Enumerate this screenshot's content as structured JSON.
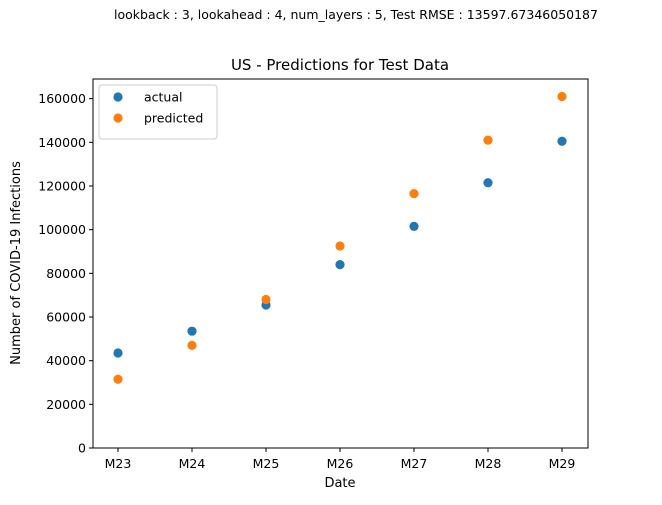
{
  "suptitle": "lookback : 3, lookahead : 4, num_layers : 5, Test RMSE : 13597.67346050187",
  "chart_data": {
    "type": "scatter",
    "title": "US - Predictions for Test Data",
    "xlabel": "Date",
    "ylabel": "Number of COVID-19 Infections",
    "categories": [
      "M23",
      "M24",
      "M25",
      "M26",
      "M27",
      "M28",
      "M29"
    ],
    "y_ticks": [
      0,
      20000,
      40000,
      60000,
      80000,
      100000,
      120000,
      140000,
      160000
    ],
    "ylim": [
      0,
      169000
    ],
    "grid": false,
    "legend_position": "top-left",
    "series": [
      {
        "name": "actual",
        "color": "#1f77b4",
        "values": [
          43500,
          53500,
          65500,
          84000,
          101500,
          121500,
          140500
        ]
      },
      {
        "name": "predicted",
        "color": "#ff7f0e",
        "values": [
          31500,
          47000,
          68000,
          92500,
          116500,
          141000,
          161000
        ]
      }
    ]
  }
}
